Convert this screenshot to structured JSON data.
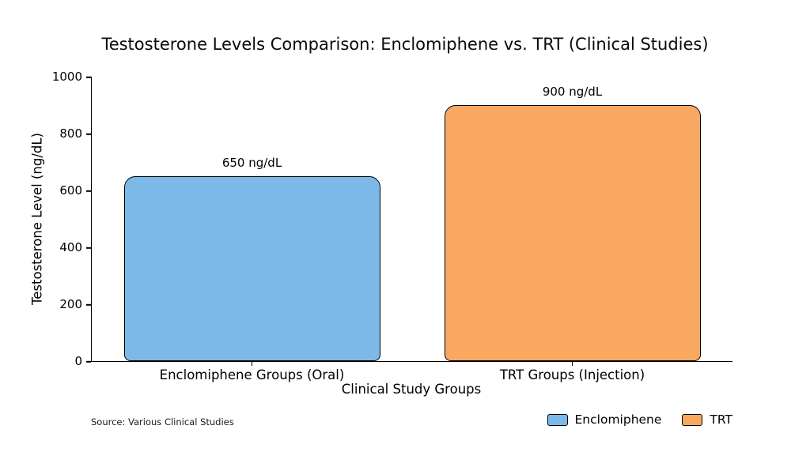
{
  "chart_data": {
    "type": "bar",
    "title": "Testosterone Levels Comparison: Enclomiphene vs. TRT (Clinical Studies)",
    "categories": [
      "Enclomiphene Groups (Oral)",
      "TRT Groups (Injection)"
    ],
    "values": [
      650,
      900
    ],
    "value_labels": [
      "650 ng/dL",
      "900 ng/dL"
    ],
    "bar_colors": [
      "#7CB9E8",
      "#F9A861"
    ],
    "bar_edge_color": "#000000",
    "xlabel": "Clinical Study Groups",
    "ylabel": "Testosterone Level (ng/dL)",
    "ylim": [
      0,
      1000
    ],
    "yticks": [
      0,
      200,
      400,
      600,
      800,
      1000
    ],
    "grid": false,
    "bar_width_fraction": 0.4,
    "legend": {
      "position": "bottom-right",
      "entries": [
        {
          "label": "Enclomiphene",
          "color": "#7CB9E8"
        },
        {
          "label": "TRT",
          "color": "#F9A861"
        }
      ]
    },
    "source_note": "Source: Various Clinical Studies"
  }
}
